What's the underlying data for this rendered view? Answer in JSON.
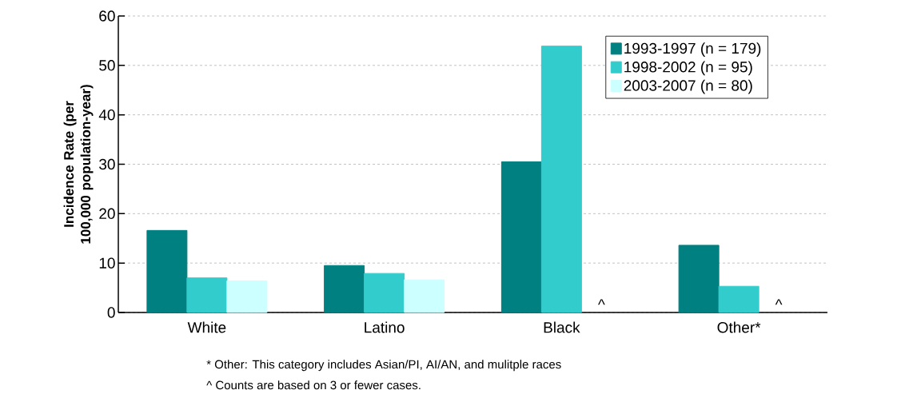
{
  "chart_data": {
    "type": "bar",
    "ylabel": "Incidence Rate (per 100,000 population-year)",
    "categories": [
      "White",
      "Latino",
      "Black",
      "Other*"
    ],
    "series": [
      {
        "name": "1993-1997 (n = 179)",
        "color": "#008080",
        "values": [
          16.6,
          9.5,
          30.5,
          13.6
        ]
      },
      {
        "name": "1998-2002 (n = 95)",
        "color": "#33cccc",
        "values": [
          7.0,
          7.9,
          53.9,
          5.3
        ]
      },
      {
        "name": "2003-2007 (n = 80)",
        "color": "#ccffff",
        "values": [
          6.4,
          6.6,
          null,
          null
        ],
        "value_labels": [
          null,
          null,
          "^",
          "^"
        ]
      }
    ],
    "ylim": [
      0,
      60
    ],
    "yticks": [
      0,
      10,
      20,
      30,
      40,
      50,
      60
    ],
    "grid": "y",
    "legend": "top right",
    "annotations": [
      "* Other: This category includes Asian/PI, AI/AN, and mulitple races",
      "^ Counts are based on 3 or fewer cases."
    ]
  }
}
